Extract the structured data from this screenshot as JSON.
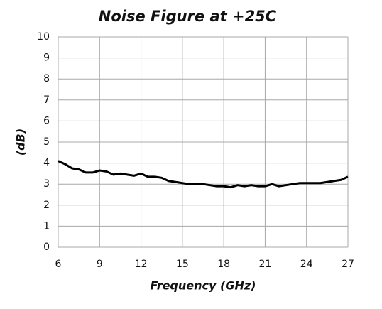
{
  "chart_data": {
    "type": "line",
    "title": "Noise Figure at +25C",
    "x_label": "Frequency (GHz)",
    "y_label": "(dB)",
    "x": [
      6,
      6.5,
      7,
      7.5,
      8,
      8.5,
      9,
      9.5,
      10,
      10.5,
      11,
      11.5,
      12,
      12.5,
      13,
      13.5,
      14,
      14.5,
      15,
      15.5,
      16,
      16.5,
      17,
      17.5,
      18,
      18.5,
      19,
      19.5,
      20,
      20.5,
      21,
      21.5,
      22,
      22.5,
      23,
      23.5,
      24,
      24.5,
      25,
      25.5,
      26,
      26.5,
      27
    ],
    "series": [
      {
        "color": "#000000",
        "values": [
          4.1,
          3.95,
          3.75,
          3.7,
          3.55,
          3.55,
          3.65,
          3.6,
          3.45,
          3.5,
          3.45,
          3.4,
          3.5,
          3.35,
          3.35,
          3.3,
          3.15,
          3.1,
          3.05,
          3.0,
          3.0,
          3.0,
          2.95,
          2.9,
          2.9,
          2.85,
          2.95,
          2.9,
          2.95,
          2.9,
          2.9,
          3.0,
          2.9,
          2.95,
          3.0,
          3.05,
          3.05,
          3.05,
          3.05,
          3.1,
          3.15,
          3.2,
          3.35
        ]
      }
    ],
    "xlim": [
      6,
      27
    ],
    "xticks": [
      6,
      9,
      12,
      15,
      18,
      21,
      24,
      27
    ],
    "ylim": [
      0,
      10
    ],
    "yticks": [
      0,
      1,
      2,
      3,
      4,
      5,
      6,
      7,
      8,
      9,
      10
    ],
    "grid": true
  }
}
